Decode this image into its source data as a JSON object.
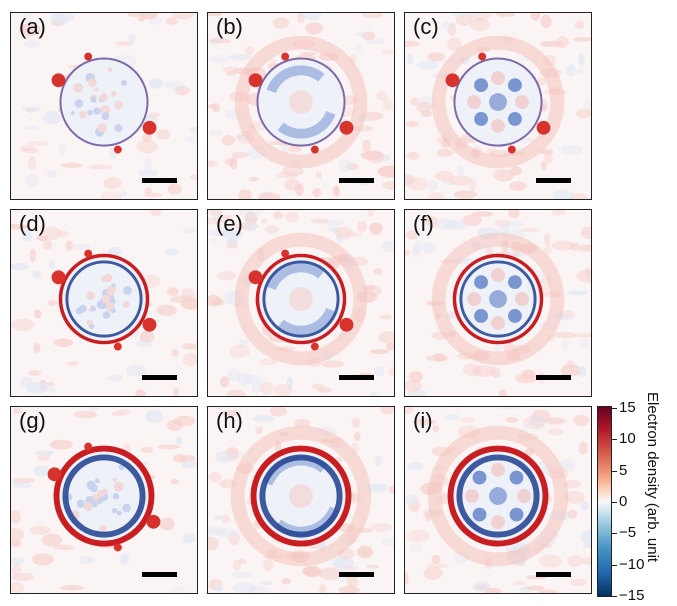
{
  "panels": [
    {
      "label": "(a)",
      "style": "thin",
      "spots": true
    },
    {
      "label": "(b)",
      "style": "thin-swirl",
      "spots": true
    },
    {
      "label": "(c)",
      "style": "thin-pattern",
      "spots": true
    },
    {
      "label": "(d)",
      "style": "medium",
      "spots": true
    },
    {
      "label": "(e)",
      "style": "medium-swirl",
      "spots": true
    },
    {
      "label": "(f)",
      "style": "medium-pattern",
      "spots": false
    },
    {
      "label": "(g)",
      "style": "thick",
      "spots": true
    },
    {
      "label": "(h)",
      "style": "thick-swirl",
      "spots": false
    },
    {
      "label": "(i)",
      "style": "thick-pattern",
      "spots": false
    }
  ],
  "colorbar": {
    "title": "Electron density (arb. unit",
    "ticks": [
      "15",
      "10",
      "5",
      "0",
      "−5",
      "−10",
      "−15"
    ],
    "colors": {
      "max": "#67001f",
      "mid": "#f7f7f7",
      "min": "#053061"
    }
  }
}
